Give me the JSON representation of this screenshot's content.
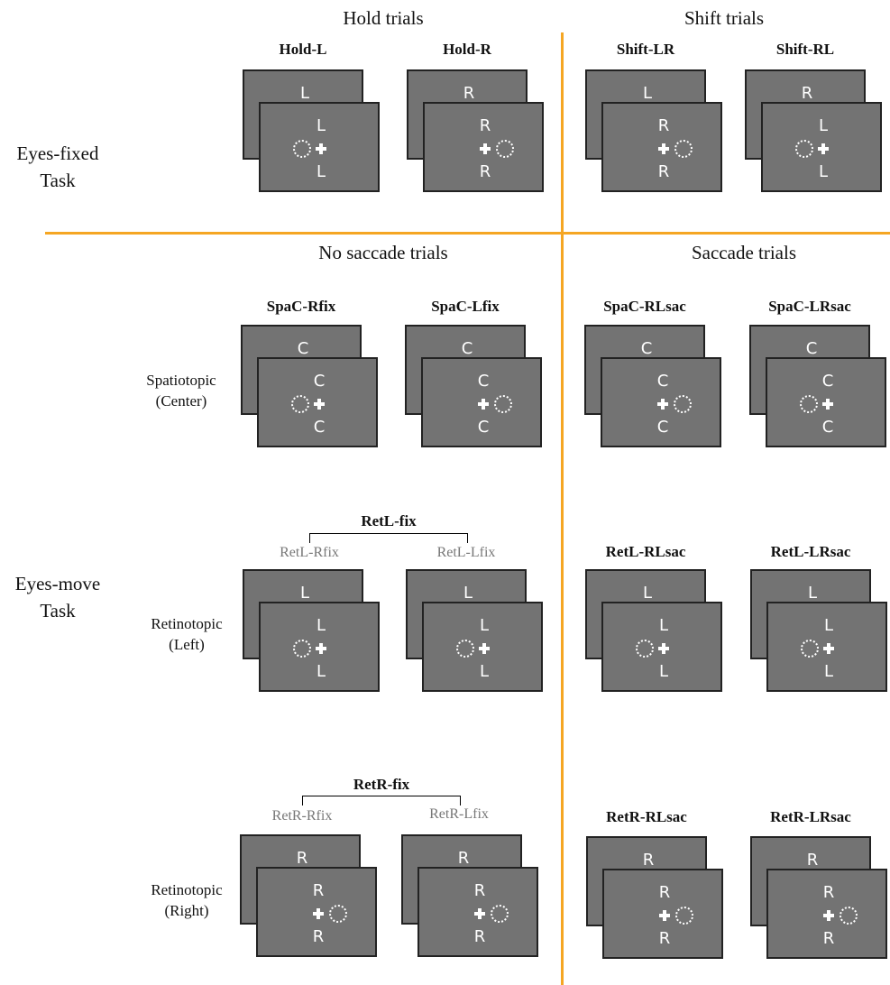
{
  "headers": {
    "hold": "Hold trials",
    "shift": "Shift trials",
    "nosaccade": "No saccade trials",
    "saccade": "Saccade trials"
  },
  "row_labels": {
    "eyes_fixed": [
      "Eyes-fixed",
      "Task"
    ],
    "eyes_move": [
      "Eyes-move",
      "Task"
    ],
    "spatiotopic": [
      "Spatiotopic",
      "(Center)"
    ],
    "ret_left": [
      "Retinotopic",
      "(Left)"
    ],
    "ret_right": [
      "Retinotopic",
      "(Right)"
    ]
  },
  "groups": {
    "retl_fix": {
      "label": "RetL-fix",
      "sub1": "RetL-Rfix",
      "sub2": "RetL-Lfix"
    },
    "retr_fix": {
      "label": "RetR-fix",
      "sub1": "RetR-Rfix",
      "sub2": "RetR-Lfix"
    }
  },
  "conditions": [
    {
      "id": "hold-l",
      "label": "Hold-L",
      "back": {
        "top": "L",
        "ring": "L"
      },
      "front": {
        "top": "L",
        "bot": "L",
        "ring": "L"
      }
    },
    {
      "id": "hold-r",
      "label": "Hold-R",
      "back": {
        "top": "R",
        "ring": "R"
      },
      "front": {
        "top": "R",
        "bot": "R",
        "ring": "R"
      }
    },
    {
      "id": "shift-lr",
      "label": "Shift-LR",
      "back": {
        "top": "L",
        "ring": "L"
      },
      "front": {
        "top": "R",
        "bot": "R",
        "ring": "R"
      }
    },
    {
      "id": "shift-rl",
      "label": "Shift-RL",
      "back": {
        "top": "R",
        "ring": "R"
      },
      "front": {
        "top": "L",
        "bot": "L",
        "ring": "L"
      }
    },
    {
      "id": "spac-rfix",
      "label": "SpaC-Rfix",
      "back": {
        "top": "C",
        "ring": "L"
      },
      "front": {
        "top": "C",
        "bot": "C",
        "ring": "L"
      }
    },
    {
      "id": "spac-lfix",
      "label": "SpaC-Lfix",
      "back": {
        "top": "C",
        "ring": "R"
      },
      "front": {
        "top": "C",
        "bot": "C",
        "ring": "R"
      }
    },
    {
      "id": "spac-rlsac",
      "label": "SpaC-RLsac",
      "back": {
        "top": "C",
        "ring": "L"
      },
      "front": {
        "top": "C",
        "bot": "C",
        "ring": "R"
      }
    },
    {
      "id": "spac-lrsac",
      "label": "SpaC-LRsac",
      "back": {
        "top": "C",
        "ring": "R"
      },
      "front": {
        "top": "C",
        "bot": "C",
        "ring": "L"
      }
    },
    {
      "id": "retl-rfix",
      "label": "",
      "back": {
        "top": "L",
        "ring": "L"
      },
      "front": {
        "top": "L",
        "bot": "L",
        "ring": "L"
      }
    },
    {
      "id": "retl-lfix",
      "label": "",
      "back": {
        "top": "L",
        "ring": "L"
      },
      "front": {
        "top": "L",
        "bot": "L",
        "ring": "L"
      }
    },
    {
      "id": "retl-rlsac",
      "label": "RetL-RLsac",
      "back": {
        "top": "L",
        "ring": "L"
      },
      "front": {
        "top": "L",
        "bot": "L",
        "ring": "L"
      }
    },
    {
      "id": "retl-lrsac",
      "label": "RetL-LRsac",
      "back": {
        "top": "L",
        "ring": "L"
      },
      "front": {
        "top": "L",
        "bot": "L",
        "ring": "L"
      }
    },
    {
      "id": "retr-rfix",
      "label": "",
      "back": {
        "top": "R",
        "ring": "R"
      },
      "front": {
        "top": "R",
        "bot": "R",
        "ring": "R"
      }
    },
    {
      "id": "retr-lfix",
      "label": "",
      "back": {
        "top": "R",
        "ring": "R"
      },
      "front": {
        "top": "R",
        "bot": "R",
        "ring": "R"
      }
    },
    {
      "id": "retr-rlsac",
      "label": "RetR-RLsac",
      "back": {
        "top": "R",
        "ring": "R"
      },
      "front": {
        "top": "R",
        "bot": "R",
        "ring": "R"
      }
    },
    {
      "id": "retr-lrsac",
      "label": "RetR-LRsac",
      "back": {
        "top": "R",
        "ring": "R"
      },
      "front": {
        "top": "R",
        "bot": "R",
        "ring": "R"
      }
    }
  ]
}
